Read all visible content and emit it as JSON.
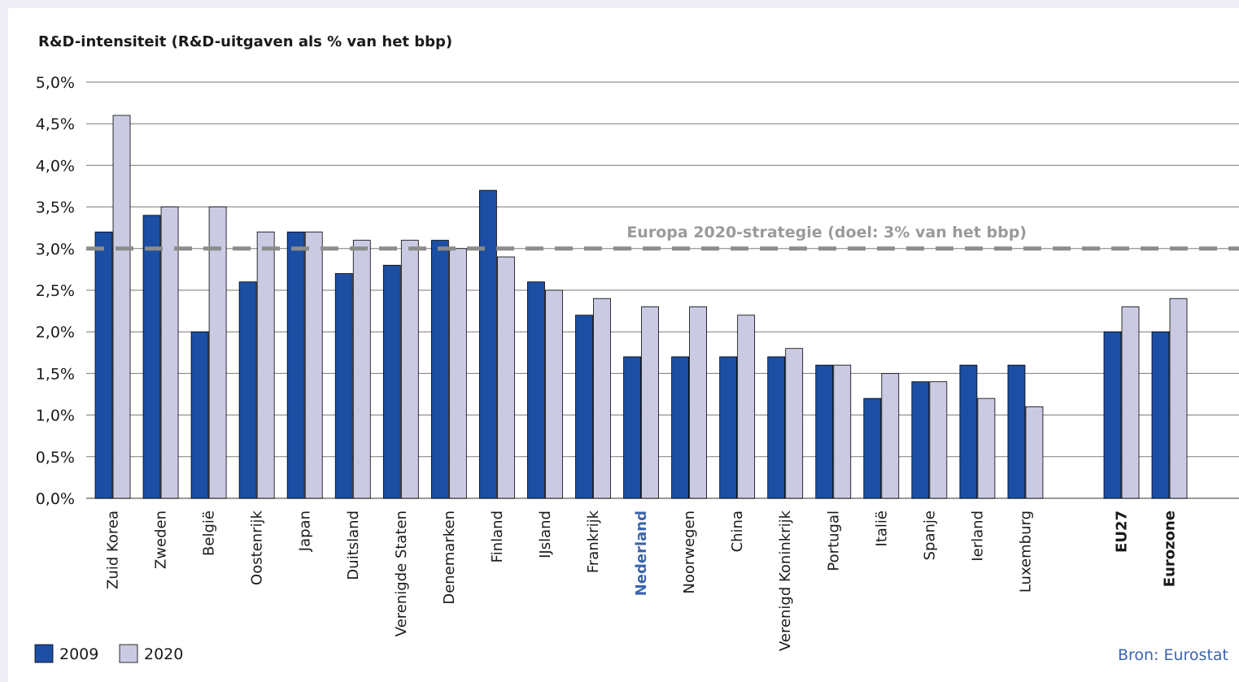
{
  "chart_data": {
    "type": "bar",
    "title": "R&D-intensiteit (R&D-uitgaven als % van het bbp)",
    "xlabel": "",
    "ylabel": "",
    "ylim": [
      0,
      5
    ],
    "y_ticks": [
      "0,0%",
      "0,5%",
      "1,0%",
      "1,5%",
      "2,0%",
      "2,5%",
      "3,0%",
      "3,5%",
      "4,0%",
      "4,5%",
      "5,0%"
    ],
    "grid": true,
    "legend_position": "bottom-left",
    "categories": [
      "Zuid Korea",
      "Zweden",
      "België",
      "Oostenrijk",
      "Japan",
      "Duitsland",
      "Verenigde Staten",
      "Denemarken",
      "Finland",
      "IJsland",
      "Frankrijk",
      "Nederland",
      "Noorwegen",
      "China",
      "Verenigd Koninkrijk",
      "Portugal",
      "Italië",
      "Spanje",
      "Ierland",
      "Luxemburg",
      "EU27",
      "Eurozone"
    ],
    "bold_categories": [
      "EU27",
      "Eurozone"
    ],
    "highlight_category": "Nederland",
    "series": [
      {
        "name": "2009",
        "color": "#1c4fa3",
        "values": [
          3.2,
          3.4,
          2.0,
          2.6,
          3.2,
          2.7,
          2.8,
          3.1,
          3.7,
          2.6,
          2.2,
          1.7,
          1.7,
          1.7,
          1.7,
          1.6,
          1.2,
          1.4,
          1.6,
          1.6,
          2.0,
          2.0
        ]
      },
      {
        "name": "2020",
        "color": "#cacbe3",
        "values": [
          4.6,
          3.5,
          3.5,
          3.2,
          3.2,
          3.1,
          3.1,
          3.0,
          2.9,
          2.5,
          2.4,
          2.3,
          2.3,
          2.2,
          1.8,
          1.6,
          1.5,
          1.4,
          1.2,
          1.1,
          2.3,
          2.4
        ]
      }
    ],
    "target_line": {
      "value": 3.0,
      "label": "Europa 2020-strategie (doel: 3% van het bbp)",
      "color": "#8c8c8c"
    },
    "source": "Bron: Eurostat"
  },
  "colors": {
    "background": "#eeedf3",
    "panel": "#ffffff",
    "highlight_text": "#3a64ad",
    "grid": "#7a7a7a"
  }
}
